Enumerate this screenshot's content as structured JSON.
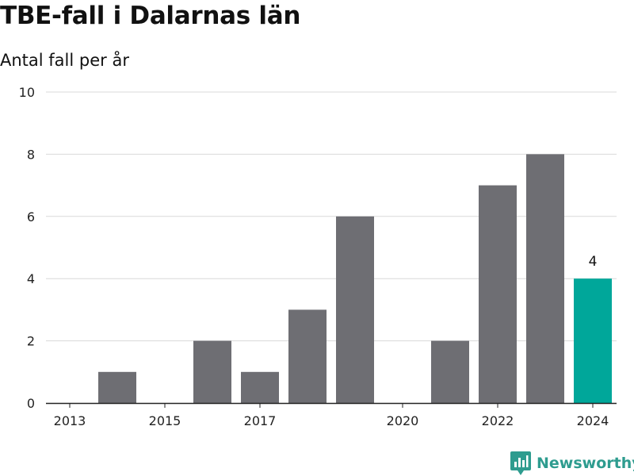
{
  "header": {
    "title": "TBE-fall i Dalarnas län",
    "subtitle": "Antal fall per år"
  },
  "brand": {
    "name": "Newsworthy",
    "icon": "newsworthy-logo-icon"
  },
  "colors": {
    "bar": "#6e6e73",
    "highlight": "#00a79a",
    "grid": "#d9d9d9",
    "axis": "#222222",
    "brand": "#2e9c8f"
  },
  "chart_data": {
    "type": "bar",
    "categories": [
      "2013",
      "2014",
      "2015",
      "2016",
      "2017",
      "2018",
      "2019",
      "2020",
      "2021",
      "2022",
      "2023",
      "2024"
    ],
    "x_tick_labels": [
      "2013",
      "2015",
      "2017",
      "2020",
      "2022",
      "2024"
    ],
    "values": [
      0,
      1,
      0,
      2,
      1,
      3,
      6,
      0,
      2,
      7,
      8,
      4
    ],
    "highlight_category": "2024",
    "data_labels": [
      {
        "category": "2024",
        "text": "4"
      }
    ],
    "title": "TBE-fall i Dalarnas län",
    "subtitle": "Antal fall per år",
    "xlabel": "",
    "ylabel": "",
    "ylim": [
      0,
      10
    ],
    "yticks": [
      0,
      2,
      4,
      6,
      8,
      10
    ],
    "grid": true,
    "legend": "none"
  }
}
